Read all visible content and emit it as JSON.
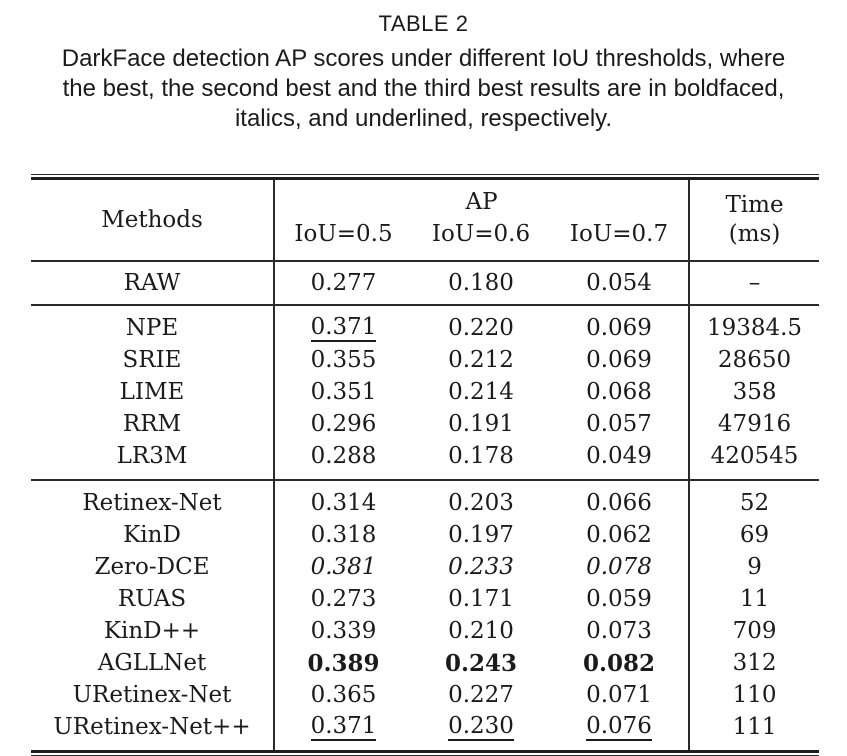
{
  "caption": {
    "label": "TABLE 2",
    "lines": [
      "DarkFace detection AP scores under different IoU thresholds, where",
      "the best, the second best and the third best results are in boldfaced,",
      "italics, and underlined, respectively."
    ]
  },
  "table": {
    "header": {
      "methods": "Methods",
      "ap": "AP",
      "iou_cols": [
        "IoU=0.5",
        "IoU=0.6",
        "IoU=0.7"
      ],
      "time_lines": [
        "Time",
        "(ms)"
      ]
    },
    "sections": [
      {
        "rows": [
          {
            "method": "RAW",
            "ap": [
              {
                "value": "0.277",
                "style": "normal"
              },
              {
                "value": "0.180",
                "style": "normal"
              },
              {
                "value": "0.054",
                "style": "normal"
              }
            ],
            "time": "–"
          }
        ]
      },
      {
        "rows": [
          {
            "method": "NPE",
            "ap": [
              {
                "value": "0.371",
                "style": "underline"
              },
              {
                "value": "0.220",
                "style": "normal"
              },
              {
                "value": "0.069",
                "style": "normal"
              }
            ],
            "time": "19384.5"
          },
          {
            "method": "SRIE",
            "ap": [
              {
                "value": "0.355",
                "style": "normal"
              },
              {
                "value": "0.212",
                "style": "normal"
              },
              {
                "value": "0.069",
                "style": "normal"
              }
            ],
            "time": "28650"
          },
          {
            "method": "LIME",
            "ap": [
              {
                "value": "0.351",
                "style": "normal"
              },
              {
                "value": "0.214",
                "style": "normal"
              },
              {
                "value": "0.068",
                "style": "normal"
              }
            ],
            "time": "358"
          },
          {
            "method": "RRM",
            "ap": [
              {
                "value": "0.296",
                "style": "normal"
              },
              {
                "value": "0.191",
                "style": "normal"
              },
              {
                "value": "0.057",
                "style": "normal"
              }
            ],
            "time": "47916"
          },
          {
            "method": "LR3M",
            "ap": [
              {
                "value": "0.288",
                "style": "normal"
              },
              {
                "value": "0.178",
                "style": "normal"
              },
              {
                "value": "0.049",
                "style": "normal"
              }
            ],
            "time": "420545"
          }
        ]
      },
      {
        "rows": [
          {
            "method": "Retinex-Net",
            "ap": [
              {
                "value": "0.314",
                "style": "normal"
              },
              {
                "value": "0.203",
                "style": "normal"
              },
              {
                "value": "0.066",
                "style": "normal"
              }
            ],
            "time": "52"
          },
          {
            "method": "KinD",
            "ap": [
              {
                "value": "0.318",
                "style": "normal"
              },
              {
                "value": "0.197",
                "style": "normal"
              },
              {
                "value": "0.062",
                "style": "normal"
              }
            ],
            "time": "69"
          },
          {
            "method": "Zero-DCE",
            "ap": [
              {
                "value": "0.381",
                "style": "italic"
              },
              {
                "value": "0.233",
                "style": "italic"
              },
              {
                "value": "0.078",
                "style": "italic"
              }
            ],
            "time": "9"
          },
          {
            "method": "RUAS",
            "ap": [
              {
                "value": "0.273",
                "style": "normal"
              },
              {
                "value": "0.171",
                "style": "normal"
              },
              {
                "value": "0.059",
                "style": "normal"
              }
            ],
            "time": "11"
          },
          {
            "method": "KinD++",
            "ap": [
              {
                "value": "0.339",
                "style": "normal"
              },
              {
                "value": "0.210",
                "style": "normal"
              },
              {
                "value": "0.073",
                "style": "normal"
              }
            ],
            "time": "709"
          },
          {
            "method": "AGLLNet",
            "ap": [
              {
                "value": "0.389",
                "style": "bold"
              },
              {
                "value": "0.243",
                "style": "bold"
              },
              {
                "value": "0.082",
                "style": "bold"
              }
            ],
            "time": "312"
          },
          {
            "method": "URetinex-Net",
            "ap": [
              {
                "value": "0.365",
                "style": "normal"
              },
              {
                "value": "0.227",
                "style": "normal"
              },
              {
                "value": "0.071",
                "style": "normal"
              }
            ],
            "time": "110"
          },
          {
            "method": "URetinex-Net++",
            "ap": [
              {
                "value": "0.371",
                "style": "underline"
              },
              {
                "value": "0.230",
                "style": "underline"
              },
              {
                "value": "0.076",
                "style": "underline"
              }
            ],
            "time": "111"
          }
        ]
      }
    ]
  },
  "colors": {
    "text": "#1b1b1b",
    "rule": "#2a2a2a",
    "background": "#ffffff"
  }
}
